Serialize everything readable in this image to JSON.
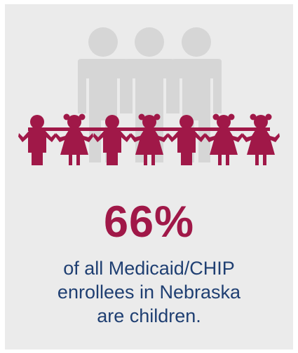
{
  "colors": {
    "background": "#ebebeb",
    "adult_figures": "#d6d6d6",
    "child_figures": "#a01848",
    "stat": "#a01848",
    "caption": "#1f3f72"
  },
  "illustration": {
    "adults": {
      "count": 3,
      "icon": "adult-person-icon"
    },
    "children": {
      "count": 7,
      "icons": [
        "boy",
        "girl",
        "boy",
        "girl",
        "boy",
        "girl",
        "girl"
      ]
    }
  },
  "stat": {
    "value": "66%"
  },
  "caption": {
    "line1": "of all Medicaid/CHIP",
    "line2": "enrollees in Nebraska",
    "line3": "are children."
  }
}
